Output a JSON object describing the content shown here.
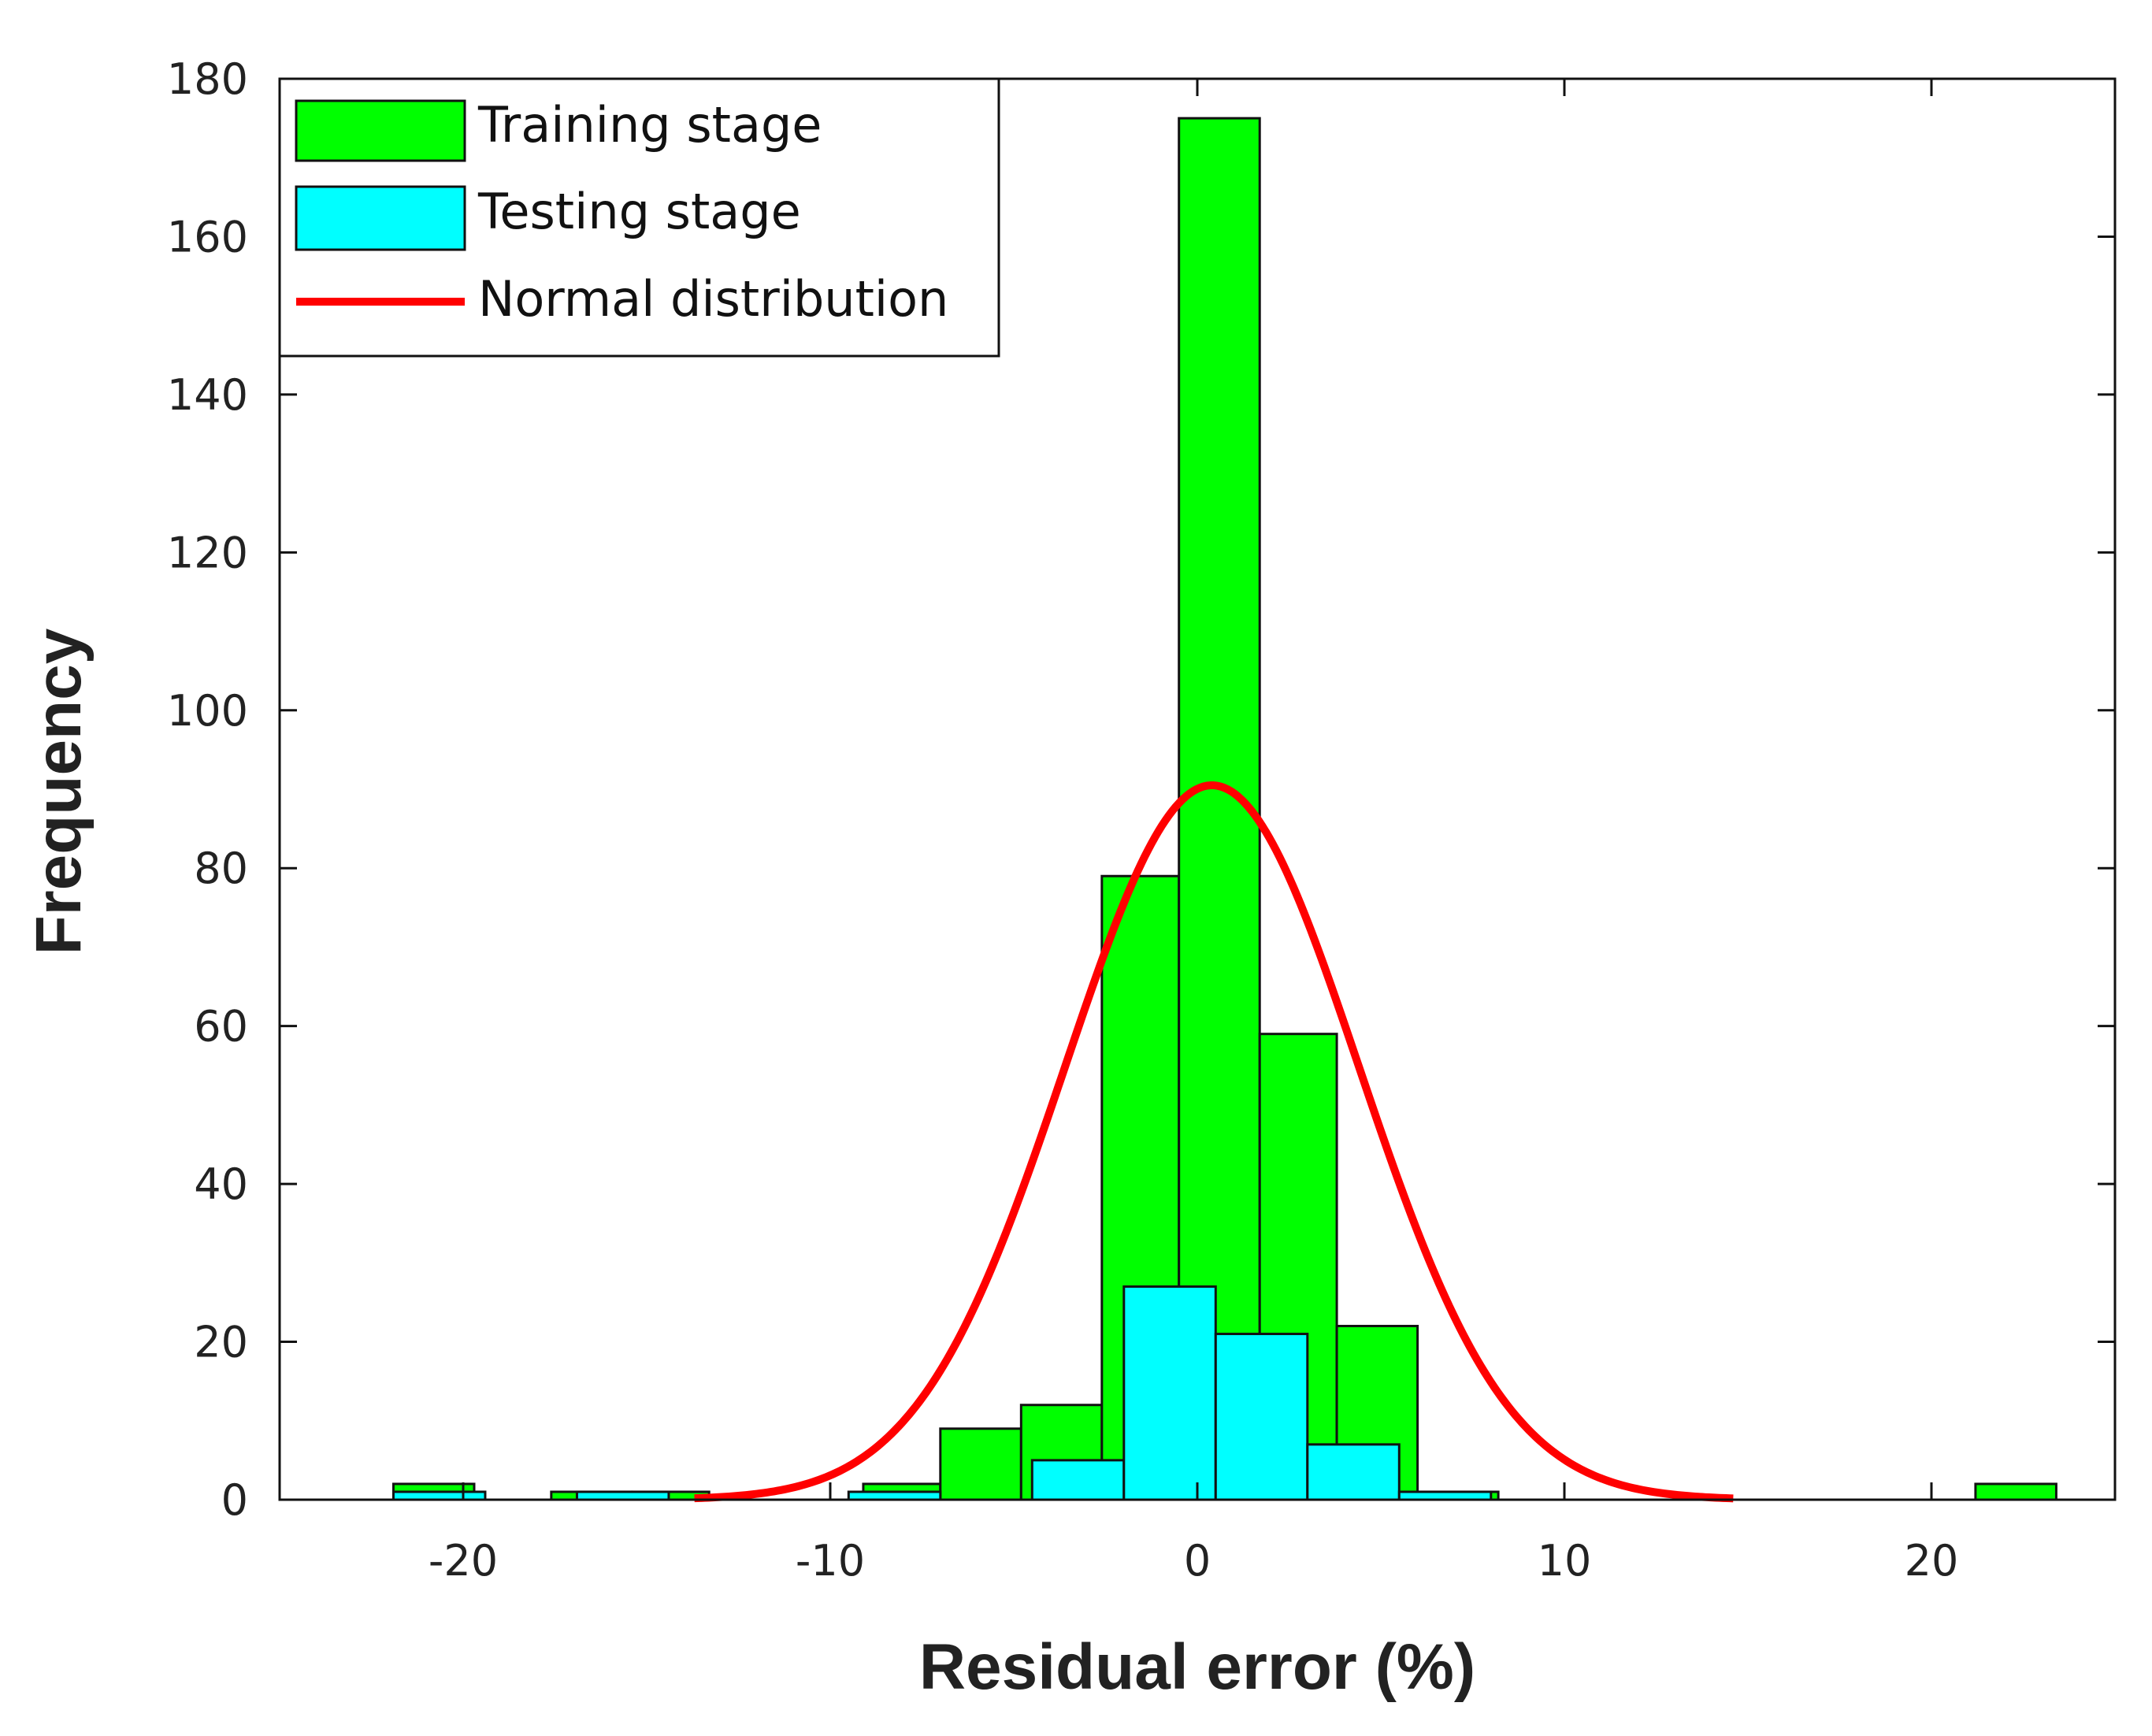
{
  "chart_data": {
    "type": "histogram",
    "xlabel": "Residual error (%)",
    "ylabel": "Frequency",
    "xlim": [
      -25,
      25
    ],
    "ylim": [
      0,
      180
    ],
    "xticks": [
      -20,
      -10,
      0,
      10,
      20
    ],
    "yticks": [
      0,
      20,
      40,
      60,
      80,
      100,
      120,
      140,
      160,
      180
    ],
    "legend": {
      "position": "top-left",
      "entries": [
        {
          "label": "Training stage",
          "kind": "patch",
          "color": "#00ff00"
        },
        {
          "label": "Testing stage",
          "kind": "patch",
          "color": "#00ffff"
        },
        {
          "label": "Normal distribution",
          "kind": "line",
          "color": "#ff0000"
        }
      ]
    },
    "series": [
      {
        "name": "Training stage",
        "color": "#00ff00",
        "bins": [
          {
            "x0": -21.9,
            "x1": -19.7,
            "count": 2
          },
          {
            "x0": -17.6,
            "x1": -15.4,
            "count": 1
          },
          {
            "x0": -15.4,
            "x1": -13.3,
            "count": 1
          },
          {
            "x0": -9.1,
            "x1": -7.0,
            "count": 2
          },
          {
            "x0": -7.0,
            "x1": -4.8,
            "count": 9
          },
          {
            "x0": -4.8,
            "x1": -2.6,
            "count": 12
          },
          {
            "x0": -2.6,
            "x1": -0.5,
            "count": 79
          },
          {
            "x0": -0.5,
            "x1": 1.7,
            "count": 175
          },
          {
            "x0": 1.7,
            "x1": 3.8,
            "count": 59
          },
          {
            "x0": 3.8,
            "x1": 6.0,
            "count": 22
          },
          {
            "x0": 6.0,
            "x1": 8.2,
            "count": 1
          },
          {
            "x0": 21.2,
            "x1": 23.4,
            "count": 2
          }
        ]
      },
      {
        "name": "Testing stage",
        "color": "#00ffff",
        "bins": [
          {
            "x0": -21.9,
            "x1": -19.4,
            "count": 1
          },
          {
            "x0": -16.9,
            "x1": -14.4,
            "count": 1
          },
          {
            "x0": -9.5,
            "x1": -7.0,
            "count": 1
          },
          {
            "x0": -4.5,
            "x1": -2.0,
            "count": 5
          },
          {
            "x0": -2.0,
            "x1": 0.5,
            "count": 27
          },
          {
            "x0": 0.5,
            "x1": 3.0,
            "count": 21
          },
          {
            "x0": 3.0,
            "x1": 5.5,
            "count": 7
          },
          {
            "x0": 5.5,
            "x1": 8.0,
            "count": 1
          }
        ]
      },
      {
        "name": "Normal distribution",
        "type": "line",
        "color": "#ff0000",
        "mu": 0.4,
        "sigma": 4.0,
        "peak": 90.5,
        "x_range": [
          -13.7,
          14.6
        ]
      }
    ]
  }
}
